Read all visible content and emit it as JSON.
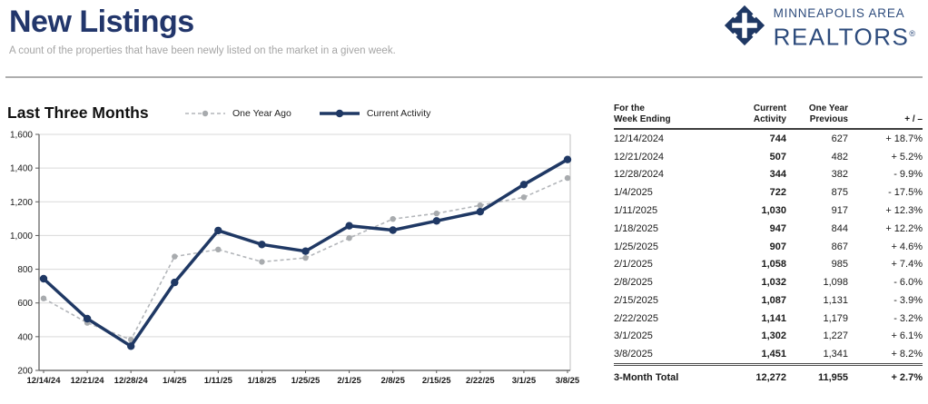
{
  "header": {
    "title": "New Listings",
    "subtitle": "A count of the properties that have been newly listed on the market in a given week.",
    "logo": {
      "line1": "MINNEAPOLIS AREA",
      "line2": "REALTORS",
      "registered": "®"
    }
  },
  "chart": {
    "section_title": "Last Three Months",
    "legend": [
      {
        "label": "One Year Ago"
      },
      {
        "label": "Current Activity"
      }
    ]
  },
  "chart_data": {
    "type": "line",
    "title": "Last Three Months",
    "x": [
      "12/14/24",
      "12/21/24",
      "12/28/24",
      "1/4/25",
      "1/11/25",
      "1/18/25",
      "1/25/25",
      "2/1/25",
      "2/8/25",
      "2/15/25",
      "2/22/25",
      "3/1/25",
      "3/8/25"
    ],
    "series": [
      {
        "name": "One Year Ago",
        "color": "#b3b6ba",
        "marker_color": "#a8abae",
        "dashed": true,
        "values": [
          627,
          482,
          382,
          875,
          917,
          844,
          867,
          985,
          1098,
          1131,
          1179,
          1227,
          1341
        ]
      },
      {
        "name": "Current Activity",
        "color": "#1f3864",
        "marker_color": "#1f3864",
        "dashed": false,
        "values": [
          744,
          507,
          344,
          722,
          1030,
          947,
          907,
          1058,
          1032,
          1087,
          1141,
          1302,
          1451
        ]
      }
    ],
    "ylim": [
      200,
      1600
    ],
    "ytick_step": 200,
    "grid": true,
    "legend_position": "top"
  },
  "table": {
    "headers": {
      "col1_line1": "For the",
      "col1_line2": "Week Ending",
      "col2_line1": "Current",
      "col2_line2": "Activity",
      "col3_line1": "One Year",
      "col3_line2": "Previous",
      "col4": "+ / –"
    },
    "rows": [
      [
        "12/14/2024",
        "744",
        "627",
        "+ 18.7%"
      ],
      [
        "12/21/2024",
        "507",
        "482",
        "+ 5.2%"
      ],
      [
        "12/28/2024",
        "344",
        "382",
        "- 9.9%"
      ],
      [
        "1/4/2025",
        "722",
        "875",
        "- 17.5%"
      ],
      [
        "1/11/2025",
        "1,030",
        "917",
        "+ 12.3%"
      ],
      [
        "1/18/2025",
        "947",
        "844",
        "+ 12.2%"
      ],
      [
        "1/25/2025",
        "907",
        "867",
        "+ 4.6%"
      ],
      [
        "2/1/2025",
        "1,058",
        "985",
        "+ 7.4%"
      ],
      [
        "2/8/2025",
        "1,032",
        "1,098",
        "- 6.0%"
      ],
      [
        "2/15/2025",
        "1,087",
        "1,131",
        "- 3.9%"
      ],
      [
        "2/22/2025",
        "1,141",
        "1,179",
        "- 3.2%"
      ],
      [
        "3/1/2025",
        "1,302",
        "1,227",
        "+ 6.1%"
      ],
      [
        "3/8/2025",
        "1,451",
        "1,341",
        "+ 8.2%"
      ]
    ],
    "total": [
      "3-Month Total",
      "12,272",
      "11,955",
      "+ 2.7%"
    ]
  },
  "colors": {
    "navy": "#1f3864",
    "title_navy": "#22366b",
    "logo_navy": "#2d4b7c",
    "gray_line": "#b3b6ba",
    "gridline": "#d9d9d9",
    "axis": "#595959",
    "subtitle_gray": "#a5a5a5"
  }
}
